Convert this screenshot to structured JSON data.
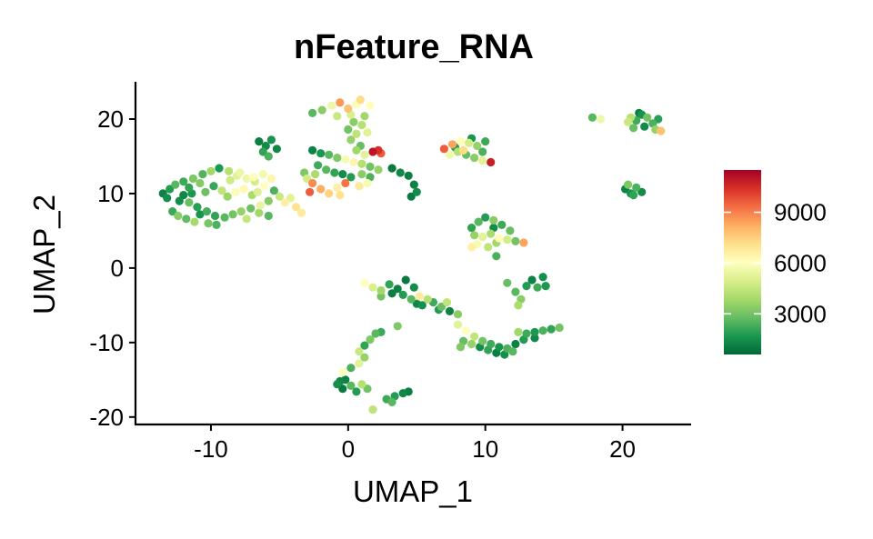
{
  "chart_data": {
    "type": "scatter",
    "title": "nFeature_RNA",
    "xlabel": "UMAP_1",
    "ylabel": "UMAP_2",
    "xlim": [
      -15.5,
      25
    ],
    "ylim": [
      -21,
      25
    ],
    "xticks": [
      -10,
      0,
      10,
      20
    ],
    "yticks": [
      -20,
      -10,
      0,
      10,
      20
    ],
    "xtick_labels": [
      "-10",
      "0",
      "10",
      "20"
    ],
    "ytick_labels": [
      "-20",
      "-10",
      "0",
      "10",
      "20"
    ],
    "grid": false,
    "legend": {
      "position": "right",
      "type": "colorbar",
      "range": [
        600,
        11500
      ],
      "ticks": [
        3000,
        6000,
        9000
      ],
      "tick_labels": [
        "3000",
        "6000",
        "9000"
      ],
      "colors": [
        "#006837",
        "#1a9850",
        "#66bd63",
        "#a6d96a",
        "#d9ef8b",
        "#ffffbf",
        "#fee08b",
        "#fdae61",
        "#f46d43",
        "#d73027",
        "#a50026"
      ]
    },
    "points": [
      [
        -13.5,
        10.0,
        1200
      ],
      [
        -13.2,
        9.4,
        1500
      ],
      [
        -13.0,
        10.6,
        1800
      ],
      [
        -12.6,
        11.2,
        2600
      ],
      [
        -12.3,
        9.0,
        1400
      ],
      [
        -12.0,
        11.6,
        2200
      ],
      [
        -11.6,
        8.8,
        2800
      ],
      [
        -11.3,
        12.0,
        3200
      ],
      [
        -11.0,
        8.2,
        1900
      ],
      [
        -10.6,
        12.6,
        2500
      ],
      [
        -10.3,
        7.6,
        2300
      ],
      [
        -10.0,
        13.0,
        3800
      ],
      [
        -9.7,
        7.0,
        2000
      ],
      [
        -9.4,
        13.4,
        1700
      ],
      [
        -9.0,
        6.8,
        2600
      ],
      [
        -8.7,
        13.0,
        4200
      ],
      [
        -8.4,
        7.2,
        3000
      ],
      [
        -8.1,
        12.4,
        5200
      ],
      [
        -7.8,
        7.6,
        3600
      ],
      [
        -7.4,
        12.0,
        5600
      ],
      [
        -7.1,
        8.0,
        2900
      ],
      [
        -6.8,
        11.6,
        4800
      ],
      [
        -6.4,
        8.4,
        5400
      ],
      [
        -6.1,
        11.0,
        6100
      ],
      [
        -5.8,
        9.0,
        3300
      ],
      [
        -5.4,
        10.4,
        2400
      ],
      [
        -5.0,
        9.6,
        4600
      ],
      [
        -4.6,
        8.8,
        6600
      ],
      [
        -4.2,
        9.4,
        5200
      ],
      [
        -3.8,
        8.2,
        7000
      ],
      [
        -3.4,
        7.4,
        6800
      ],
      [
        -12.8,
        7.6,
        2200
      ],
      [
        -12.4,
        7.0,
        3400
      ],
      [
        -11.8,
        6.6,
        2700
      ],
      [
        -11.2,
        6.2,
        3900
      ],
      [
        -10.8,
        7.2,
        1600
      ],
      [
        -10.2,
        6.0,
        3100
      ],
      [
        -9.6,
        5.8,
        2400
      ],
      [
        -9.2,
        10.4,
        4400
      ],
      [
        -8.8,
        9.6,
        3700
      ],
      [
        -8.2,
        10.2,
        5900
      ],
      [
        -7.6,
        10.6,
        6300
      ],
      [
        -7.0,
        9.8,
        4000
      ],
      [
        -6.6,
        10.2,
        5100
      ],
      [
        -9.8,
        11.0,
        2100
      ],
      [
        -10.4,
        10.2,
        2900
      ],
      [
        -11.4,
        10.0,
        1700
      ],
      [
        -12.0,
        9.8,
        1300
      ],
      [
        -11.6,
        10.8,
        2000
      ],
      [
        -10.8,
        11.4,
        3300
      ],
      [
        -8.6,
        11.8,
        4700
      ],
      [
        -7.9,
        12.8,
        5500
      ],
      [
        -6.9,
        12.2,
        6000
      ],
      [
        -6.2,
        12.6,
        5700
      ],
      [
        -5.6,
        12.0,
        6400
      ],
      [
        -6.5,
        7.4,
        3800
      ],
      [
        -5.8,
        7.0,
        2600
      ],
      [
        -7.4,
        6.6,
        4500
      ],
      [
        -6.5,
        17.0,
        1100
      ],
      [
        -6.0,
        16.4,
        1400
      ],
      [
        -5.6,
        17.2,
        1600
      ],
      [
        -6.2,
        15.6,
        2000
      ],
      [
        -5.2,
        16.0,
        1300
      ],
      [
        -5.8,
        15.0,
        2400
      ],
      [
        -2.6,
        20.8,
        2600
      ],
      [
        -1.9,
        21.2,
        3400
      ],
      [
        -1.2,
        21.8,
        5600
      ],
      [
        -0.6,
        22.2,
        8600
      ],
      [
        0.0,
        21.4,
        7800
      ],
      [
        0.6,
        22.0,
        6200
      ],
      [
        0.9,
        22.6,
        7200
      ],
      [
        0.2,
        20.6,
        5000
      ],
      [
        1.2,
        20.4,
        3800
      ],
      [
        1.6,
        21.8,
        6000
      ],
      [
        -0.8,
        20.4,
        4600
      ],
      [
        0.4,
        19.6,
        3400
      ],
      [
        1.0,
        19.2,
        4200
      ],
      [
        0.0,
        18.6,
        3000
      ],
      [
        0.6,
        18.0,
        4400
      ],
      [
        1.4,
        18.2,
        5200
      ],
      [
        0.2,
        17.2,
        3600
      ],
      [
        0.9,
        16.4,
        2800
      ],
      [
        -2.6,
        15.8,
        1200
      ],
      [
        -2.0,
        15.4,
        1700
      ],
      [
        -1.4,
        15.2,
        2600
      ],
      [
        -0.8,
        14.8,
        3200
      ],
      [
        -0.2,
        14.6,
        5800
      ],
      [
        0.4,
        14.2,
        6400
      ],
      [
        1.0,
        14.0,
        4200
      ],
      [
        1.6,
        13.6,
        3000
      ],
      [
        2.2,
        13.2,
        3600
      ],
      [
        1.8,
        15.6,
        11000
      ],
      [
        2.2,
        15.8,
        10400
      ],
      [
        2.4,
        15.4,
        9600
      ],
      [
        1.2,
        15.2,
        5200
      ],
      [
        0.6,
        15.8,
        3800
      ],
      [
        -2.2,
        13.8,
        2200
      ],
      [
        -1.6,
        13.2,
        2600
      ],
      [
        -1.0,
        12.8,
        2000
      ],
      [
        -0.4,
        12.6,
        1400
      ],
      [
        0.2,
        12.2,
        1800
      ],
      [
        1.0,
        12.6,
        3400
      ],
      [
        1.6,
        12.2,
        2400
      ],
      [
        -3.0,
        12.0,
        4800
      ],
      [
        -2.6,
        11.4,
        8800
      ],
      [
        -2.8,
        10.2,
        9600
      ],
      [
        -2.0,
        10.6,
        8200
      ],
      [
        -1.4,
        10.0,
        7400
      ],
      [
        -0.8,
        10.8,
        6600
      ],
      [
        -0.2,
        11.4,
        9200
      ],
      [
        -0.6,
        9.8,
        7000
      ],
      [
        -3.2,
        12.8,
        3200
      ],
      [
        -2.4,
        12.6,
        4000
      ],
      [
        1.4,
        11.4,
        5800
      ],
      [
        0.8,
        11.0,
        6800
      ],
      [
        3.2,
        13.4,
        1000
      ],
      [
        3.8,
        12.8,
        1300
      ],
      [
        4.4,
        12.4,
        1100
      ],
      [
        4.8,
        11.2,
        1200
      ],
      [
        5.0,
        10.2,
        1400
      ],
      [
        4.6,
        9.6,
        1000
      ],
      [
        7.0,
        16.0,
        9600
      ],
      [
        7.6,
        16.6,
        8400
      ],
      [
        8.2,
        17.0,
        6200
      ],
      [
        8.8,
        16.8,
        4800
      ],
      [
        9.4,
        16.4,
        3600
      ],
      [
        9.8,
        15.6,
        2400
      ],
      [
        7.4,
        15.2,
        5600
      ],
      [
        8.0,
        15.6,
        4200
      ],
      [
        8.6,
        15.2,
        2800
      ],
      [
        9.2,
        14.8,
        3400
      ],
      [
        9.8,
        14.4,
        5200
      ],
      [
        10.4,
        14.2,
        10800
      ],
      [
        10.0,
        17.0,
        2200
      ],
      [
        9.0,
        17.4,
        1600
      ],
      [
        8.4,
        15.8,
        7200
      ],
      [
        7.8,
        16.2,
        1800
      ],
      [
        17.8,
        20.2,
        2600
      ],
      [
        18.4,
        20.0,
        5600
      ],
      [
        20.6,
        20.2,
        4200
      ],
      [
        21.0,
        19.8,
        2200
      ],
      [
        21.4,
        20.6,
        1600
      ],
      [
        21.8,
        20.2,
        3000
      ],
      [
        22.2,
        19.4,
        2400
      ],
      [
        22.6,
        20.0,
        1900
      ],
      [
        20.8,
        18.8,
        2800
      ],
      [
        21.6,
        19.0,
        1400
      ],
      [
        22.4,
        18.6,
        3600
      ],
      [
        22.8,
        18.4,
        7800
      ],
      [
        21.2,
        20.8,
        1100
      ],
      [
        20.4,
        19.6,
        4600
      ],
      [
        20.2,
        10.6,
        1200
      ],
      [
        20.6,
        10.0,
        1600
      ],
      [
        21.0,
        10.8,
        2400
      ],
      [
        20.4,
        11.2,
        3200
      ],
      [
        21.4,
        10.2,
        1400
      ],
      [
        20.8,
        9.8,
        2000
      ],
      [
        9.0,
        5.4,
        2000
      ],
      [
        9.5,
        6.2,
        2600
      ],
      [
        10.0,
        6.8,
        1800
      ],
      [
        10.6,
        6.4,
        3400
      ],
      [
        11.2,
        5.8,
        2200
      ],
      [
        11.8,
        5.0,
        2800
      ],
      [
        9.2,
        4.4,
        3600
      ],
      [
        9.8,
        4.2,
        5200
      ],
      [
        10.4,
        4.6,
        4000
      ],
      [
        11.0,
        4.0,
        6200
      ],
      [
        11.6,
        3.8,
        4800
      ],
      [
        12.2,
        3.6,
        3000
      ],
      [
        9.4,
        3.2,
        5800
      ],
      [
        10.2,
        2.8,
        4400
      ],
      [
        10.8,
        3.4,
        3800
      ],
      [
        9.0,
        2.8,
        6600
      ],
      [
        12.8,
        3.4,
        8400
      ],
      [
        10.8,
        1.6,
        2400
      ],
      [
        10.6,
        5.4,
        1400
      ],
      [
        1.2,
        -2.0,
        6000
      ],
      [
        1.8,
        -2.6,
        5000
      ],
      [
        2.4,
        -3.0,
        3800
      ],
      [
        3.0,
        -2.2,
        2000
      ],
      [
        3.6,
        -2.8,
        1200
      ],
      [
        4.2,
        -1.6,
        1000
      ],
      [
        4.8,
        -2.6,
        1400
      ],
      [
        4.0,
        -3.6,
        1800
      ],
      [
        4.6,
        -4.2,
        2600
      ],
      [
        5.2,
        -3.8,
        6800
      ],
      [
        5.8,
        -4.2,
        4200
      ],
      [
        6.2,
        -4.6,
        2200
      ],
      [
        5.4,
        -5.0,
        1500
      ],
      [
        6.8,
        -5.2,
        2800
      ],
      [
        7.4,
        -5.8,
        1200
      ],
      [
        8.0,
        -6.2,
        3400
      ],
      [
        7.2,
        -4.6,
        4400
      ],
      [
        6.6,
        -5.6,
        1800
      ],
      [
        3.2,
        -3.4,
        1100
      ],
      [
        2.4,
        -3.8,
        3000
      ],
      [
        5.0,
        -4.8,
        1300
      ],
      [
        8.0,
        -7.6,
        5200
      ],
      [
        8.6,
        -8.4,
        6000
      ],
      [
        9.2,
        -9.2,
        4400
      ],
      [
        9.8,
        -9.8,
        3000
      ],
      [
        10.4,
        -10.2,
        2200
      ],
      [
        11.0,
        -10.6,
        1600
      ],
      [
        11.6,
        -10.8,
        2400
      ],
      [
        12.2,
        -10.2,
        1200
      ],
      [
        12.8,
        -9.6,
        1800
      ],
      [
        8.4,
        -9.8,
        2800
      ],
      [
        9.0,
        -10.2,
        3600
      ],
      [
        9.6,
        -10.6,
        1400
      ],
      [
        10.2,
        -11.0,
        2000
      ],
      [
        10.8,
        -11.4,
        1100
      ],
      [
        11.4,
        -11.6,
        1500
      ],
      [
        12.0,
        -11.2,
        2600
      ],
      [
        8.2,
        -10.6,
        3200
      ],
      [
        12.4,
        -8.6,
        3800
      ],
      [
        13.0,
        -8.8,
        2200
      ],
      [
        13.6,
        -8.6,
        1700
      ],
      [
        14.2,
        -8.4,
        2400
      ],
      [
        14.8,
        -8.2,
        2000
      ],
      [
        15.4,
        -8.0,
        3000
      ],
      [
        13.6,
        -9.4,
        1300
      ],
      [
        12.2,
        -3.2,
        2600
      ],
      [
        12.6,
        -4.2,
        3400
      ],
      [
        13.0,
        -2.4,
        1800
      ],
      [
        13.4,
        -1.6,
        1200
      ],
      [
        13.8,
        -2.6,
        2200
      ],
      [
        14.2,
        -1.2,
        1500
      ],
      [
        11.6,
        -2.0,
        2800
      ],
      [
        12.4,
        -5.0,
        4000
      ],
      [
        14.4,
        -2.4,
        1700
      ],
      [
        2.4,
        -8.6,
        2200
      ],
      [
        2.0,
        -8.8,
        2600
      ],
      [
        1.6,
        -9.6,
        3200
      ],
      [
        1.2,
        -10.4,
        2000
      ],
      [
        0.8,
        -11.2,
        4600
      ],
      [
        1.2,
        -12.0,
        3600
      ],
      [
        0.8,
        -12.8,
        5200
      ],
      [
        0.2,
        -13.4,
        2400
      ],
      [
        -0.4,
        -14.0,
        6000
      ],
      [
        -0.2,
        -15.0,
        1200
      ],
      [
        -0.8,
        -15.6,
        1500
      ],
      [
        -0.4,
        -16.2,
        1000
      ],
      [
        0.2,
        -15.8,
        2600
      ],
      [
        0.6,
        -16.6,
        1800
      ],
      [
        1.0,
        -15.6,
        4200
      ],
      [
        1.4,
        -16.2,
        3000
      ],
      [
        -0.6,
        -15.2,
        1300
      ],
      [
        2.8,
        -17.6,
        2200
      ],
      [
        3.4,
        -17.2,
        1800
      ],
      [
        4.0,
        -16.8,
        1300
      ],
      [
        4.4,
        -16.6,
        1100
      ],
      [
        3.2,
        -18.0,
        2600
      ],
      [
        1.8,
        -19.0,
        4400
      ],
      [
        3.6,
        -7.8,
        3200
      ]
    ]
  }
}
